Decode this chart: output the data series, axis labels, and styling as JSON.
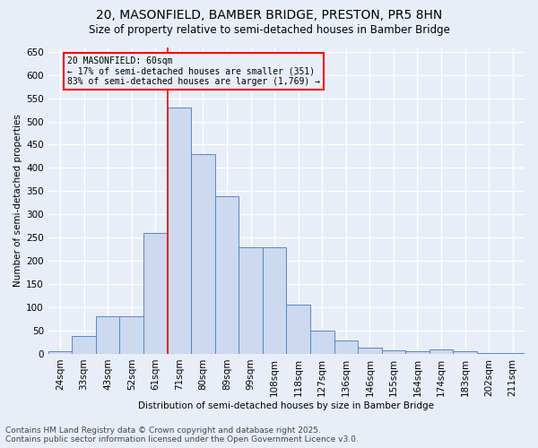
{
  "title": "20, MASONFIELD, BAMBER BRIDGE, PRESTON, PR5 8HN",
  "subtitle": "Size of property relative to semi-detached houses in Bamber Bridge",
  "xlabel": "Distribution of semi-detached houses by size in Bamber Bridge",
  "ylabel": "Number of semi-detached properties",
  "categories": [
    "24sqm",
    "33sqm",
    "43sqm",
    "52sqm",
    "61sqm",
    "71sqm",
    "80sqm",
    "89sqm",
    "99sqm",
    "108sqm",
    "118sqm",
    "127sqm",
    "136sqm",
    "146sqm",
    "155sqm",
    "164sqm",
    "174sqm",
    "183sqm",
    "202sqm",
    "211sqm"
  ],
  "bar_values": [
    6,
    38,
    80,
    80,
    260,
    530,
    430,
    340,
    230,
    230,
    105,
    50,
    28,
    13,
    8,
    5,
    10,
    5,
    2,
    1
  ],
  "bar_color": "#ccd9ee",
  "bar_edge_color": "#5b86c0",
  "property_line_x": 4.5,
  "property_line_color": "red",
  "annotation_text": "20 MASONFIELD: 60sqm\n← 17% of semi-detached houses are smaller (351)\n83% of semi-detached houses are larger (1,769) →",
  "annotation_box_color": "red",
  "ylim_max": 660,
  "yticks": [
    0,
    50,
    100,
    150,
    200,
    250,
    300,
    350,
    400,
    450,
    500,
    550,
    600,
    650
  ],
  "footer_line1": "Contains HM Land Registry data © Crown copyright and database right 2025.",
  "footer_line2": "Contains public sector information licensed under the Open Government Licence v3.0.",
  "background_color": "#e8eef8",
  "grid_color": "#ffffff",
  "title_fontsize": 10,
  "subtitle_fontsize": 8.5,
  "axis_fontsize": 7.5,
  "tick_fontsize": 7.5,
  "footer_fontsize": 6.5
}
